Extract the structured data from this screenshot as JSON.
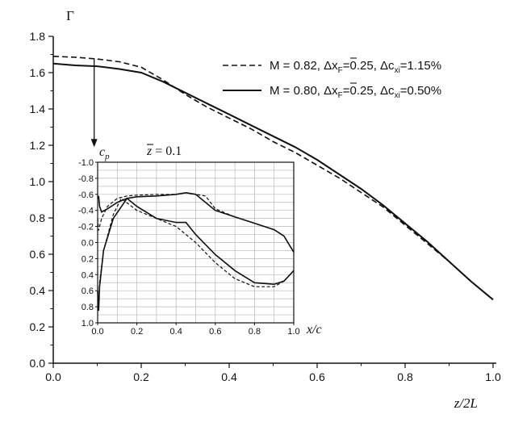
{
  "chart_data": [
    {
      "type": "line",
      "ylabel": "Γ",
      "xlabel": "z/2L",
      "xlim": [
        0.0,
        1.0
      ],
      "ylim": [
        0.0,
        1.8
      ],
      "xticks": [
        "0.0",
        "0.2",
        "0.4",
        "0.6",
        "0.8",
        "1.0"
      ],
      "yticks": [
        "0.0",
        "0.2",
        "0.4",
        "0.6",
        "0.8",
        "1.0",
        "1.2",
        "1.4",
        "1.6",
        "1.8"
      ],
      "grid": false,
      "legend_position": "top-right",
      "series": [
        {
          "name": "M = 0.82, Δx̄F=0.25, Δcxi=1.15%",
          "legend": {
            "main": "M = 0.82,  Δx",
            "after_bar": "=0.25, Δc",
            "after_sub": "=1.15%",
            "sub1": "F",
            "sub2": "xi",
            "bar_char": "x"
          },
          "style": "dashed",
          "x": [
            0.0,
            0.05,
            0.1,
            0.15,
            0.2,
            0.25,
            0.3,
            0.35,
            0.4,
            0.45,
            0.5,
            0.55,
            0.6,
            0.65,
            0.7,
            0.75,
            0.8,
            0.85,
            0.9,
            0.95,
            1.0
          ],
          "y": [
            1.69,
            1.685,
            1.675,
            1.66,
            1.63,
            1.56,
            1.48,
            1.41,
            1.35,
            1.29,
            1.22,
            1.16,
            1.09,
            1.02,
            0.94,
            0.86,
            0.76,
            0.66,
            0.56,
            0.45,
            0.35
          ]
        },
        {
          "name": "M = 0.80, Δx̄F=0.25, Δcxi=0.50%",
          "legend": {
            "main": "M = 0.80,  Δx",
            "after_bar": "=0.25, Δc",
            "after_sub": "=0.50%",
            "sub1": "F",
            "sub2": "xi",
            "bar_char": "x"
          },
          "style": "solid",
          "x": [
            0.0,
            0.05,
            0.1,
            0.15,
            0.2,
            0.25,
            0.3,
            0.35,
            0.4,
            0.45,
            0.5,
            0.55,
            0.6,
            0.65,
            0.7,
            0.75,
            0.8,
            0.85,
            0.9,
            0.95,
            1.0
          ],
          "y": [
            1.65,
            1.64,
            1.635,
            1.62,
            1.6,
            1.55,
            1.49,
            1.43,
            1.37,
            1.31,
            1.25,
            1.19,
            1.12,
            1.04,
            0.96,
            0.87,
            0.77,
            0.67,
            0.56,
            0.45,
            0.35
          ]
        }
      ],
      "annotations": [
        {
          "type": "arrow",
          "x": 0.093,
          "y_start": 1.68,
          "y_end": 1.19
        }
      ]
    },
    {
      "type": "line",
      "title": "z̄ = 0.1",
      "title_parts": {
        "var": "z",
        "rest": " = 0.1"
      },
      "ylabel": "c",
      "ylabel_sub": "p",
      "xlabel": "x/c",
      "xlim": [
        0.0,
        1.0
      ],
      "ylim": [
        -1.0,
        1.0
      ],
      "y_inverted": true,
      "xticks": [
        "0.0",
        "0.2",
        "0.4",
        "0.6",
        "0.8",
        "1.0"
      ],
      "yticks": [
        "-1.0",
        "-0.8",
        "-0.6",
        "-0.4",
        "-0.2",
        "0.0",
        "0.2",
        "0.4",
        "0.6",
        "0.8",
        "1.0"
      ],
      "grid": true,
      "series": [
        {
          "style": "solid",
          "x": [
            0.0,
            0.005,
            0.01,
            0.02,
            0.05,
            0.1,
            0.15,
            0.2,
            0.3,
            0.4,
            0.45,
            0.5,
            0.55,
            0.6,
            0.7,
            0.8,
            0.9,
            0.95,
            1.0
          ],
          "y": [
            -0.55,
            -0.58,
            -0.45,
            -0.38,
            -0.42,
            -0.5,
            -0.55,
            -0.57,
            -0.58,
            -0.6,
            -0.62,
            -0.6,
            -0.5,
            -0.4,
            -0.32,
            -0.24,
            -0.16,
            -0.08,
            0.12
          ]
        },
        {
          "style": "solid",
          "x": [
            0.0,
            0.005,
            0.01,
            0.03,
            0.08,
            0.15,
            0.2,
            0.3,
            0.4,
            0.45,
            0.5,
            0.6,
            0.7,
            0.8,
            0.9,
            0.95,
            1.0
          ],
          "y": [
            0.6,
            0.85,
            0.55,
            0.1,
            -0.3,
            -0.55,
            -0.45,
            -0.3,
            -0.25,
            -0.25,
            -0.1,
            0.15,
            0.35,
            0.5,
            0.52,
            0.48,
            0.35
          ]
        },
        {
          "style": "dashed",
          "x": [
            0.0,
            0.005,
            0.01,
            0.02,
            0.05,
            0.1,
            0.15,
            0.2,
            0.3,
            0.4,
            0.45,
            0.5,
            0.55,
            0.6,
            0.7,
            0.8,
            0.9,
            0.95,
            1.0
          ],
          "y": [
            -0.3,
            -0.15,
            -0.2,
            -0.3,
            -0.45,
            -0.55,
            -0.58,
            -0.59,
            -0.6,
            -0.6,
            -0.62,
            -0.6,
            -0.58,
            -0.42,
            -0.32,
            -0.24,
            -0.16,
            -0.08,
            0.12
          ]
        },
        {
          "style": "dashed",
          "x": [
            0.0,
            0.005,
            0.01,
            0.03,
            0.08,
            0.12,
            0.2,
            0.3,
            0.4,
            0.5,
            0.6,
            0.7,
            0.8,
            0.9,
            0.95,
            1.0
          ],
          "y": [
            0.55,
            0.82,
            0.5,
            0.1,
            -0.35,
            -0.55,
            -0.4,
            -0.3,
            -0.2,
            0.0,
            0.25,
            0.45,
            0.55,
            0.55,
            0.48,
            0.35
          ]
        }
      ]
    }
  ]
}
